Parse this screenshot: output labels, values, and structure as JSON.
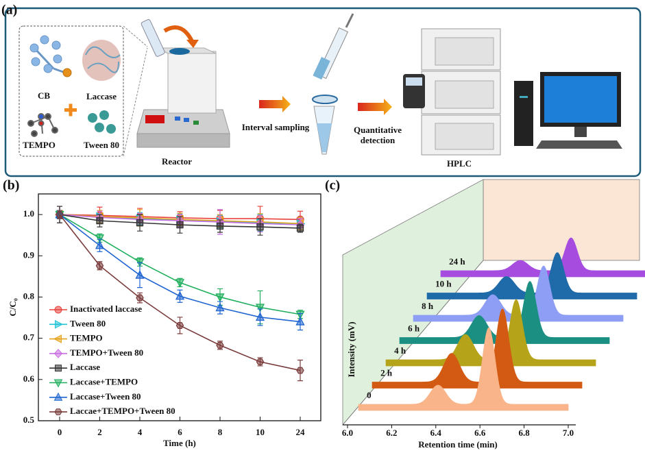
{
  "panel_a": {
    "label": "(a)",
    "cb": "CB",
    "laccase": "Laccase",
    "tempo": "TEMPO",
    "tween": "Tween 80",
    "reactor": "Reactor",
    "sampling": "Interval sampling",
    "detection": [
      "Quantitative",
      "detection"
    ],
    "hplc": "HPLC"
  },
  "chart_data": [
    {
      "panel_label": "(b)",
      "type": "line",
      "xlabel": "Time (h)",
      "ylabel": "C/C₀",
      "categories": [
        "0",
        "2",
        "4",
        "6",
        "8",
        "10",
        "24"
      ],
      "ylim": [
        0.5,
        1.05
      ],
      "yticks": [
        0.5,
        0.6,
        0.7,
        0.8,
        0.9,
        {
          "value": 1.0,
          "label": "1.0"
        }
      ],
      "legend": "lower left",
      "series": [
        {
          "name": "Inactivated laccase",
          "color": "#e8403a",
          "marker": "circle",
          "values": [
            1.0,
            0.998,
            0.995,
            0.992,
            0.99,
            0.99,
            0.988
          ],
          "errors": [
            0.02,
            0.02,
            0.02,
            0.015,
            0.02,
            0.03,
            0.02
          ]
        },
        {
          "name": "Tween 80",
          "color": "#1fc3d6",
          "marker": "tri-right",
          "values": [
            1.0,
            0.995,
            0.99,
            0.987,
            0.983,
            0.98,
            0.978
          ],
          "errors": [
            0.02,
            0.015,
            0.015,
            0.015,
            0.015,
            0.02,
            0.015
          ]
        },
        {
          "name": "TEMPO",
          "color": "#e3a21a",
          "marker": "tri-left",
          "values": [
            1.0,
            0.995,
            0.992,
            0.988,
            0.985,
            0.982,
            0.978
          ],
          "errors": [
            0.02,
            0.015,
            0.02,
            0.015,
            0.015,
            0.02,
            0.015
          ]
        },
        {
          "name": "TEMPO+Tween 80",
          "color": "#c86ee0",
          "marker": "diamond",
          "values": [
            1.0,
            0.993,
            0.988,
            0.985,
            0.982,
            0.978,
            0.975
          ],
          "errors": [
            0.02,
            0.015,
            0.015,
            0.015,
            0.03,
            0.02,
            0.015
          ]
        },
        {
          "name": "Laccase",
          "color": "#333333",
          "marker": "square",
          "values": [
            1.0,
            0.985,
            0.98,
            0.975,
            0.972,
            0.97,
            0.967
          ],
          "errors": [
            0.02,
            0.015,
            0.02,
            0.02,
            0.015,
            0.02,
            0.01
          ]
        },
        {
          "name": "Laccase+TEMPO",
          "color": "#1fae5c",
          "marker": "tri-down",
          "values": [
            1.0,
            0.943,
            0.885,
            0.835,
            0.8,
            0.775,
            0.758
          ],
          "errors": [
            0.01,
            0.01,
            0.01,
            0.01,
            0.02,
            0.04,
            0.01
          ]
        },
        {
          "name": "Laccase+Tween 80",
          "color": "#1f64d0",
          "marker": "tri-up",
          "values": [
            1.0,
            0.925,
            0.853,
            0.802,
            0.774,
            0.751,
            0.74
          ],
          "errors": [
            0.01,
            0.015,
            0.03,
            0.015,
            0.015,
            0.02,
            0.02
          ]
        },
        {
          "name": "Laccae+TEMPO+Tween 80",
          "color": "#7a3b3b",
          "marker": "hexagon",
          "values": [
            1.0,
            0.876,
            0.798,
            0.731,
            0.683,
            0.643,
            0.622
          ],
          "errors": [
            0.01,
            0.01,
            0.012,
            0.02,
            0.01,
            0.01,
            0.025
          ]
        }
      ]
    },
    {
      "panel_label": "(c)",
      "type": "waterfall",
      "xlabel": "Retention time (min)",
      "ylabel": "Intensity (mV)",
      "xlim": [
        6.0,
        7.0
      ],
      "xticks": [
        {
          "value": 6.0,
          "label": "6.0"
        },
        6.2,
        6.4,
        6.6,
        6.8,
        {
          "value": 7.0,
          "label": "7.0"
        }
      ],
      "x": [
        6.41,
        6.64
      ],
      "series": [
        {
          "name": "0",
          "color": "#f9b48a",
          "values": [
            28,
            112
          ]
        },
        {
          "name": "2 h",
          "color": "#d35a12",
          "values": [
            42,
            107
          ]
        },
        {
          "name": "4 h",
          "color": "#b5a41a",
          "values": [
            37,
            88
          ]
        },
        {
          "name": "6 h",
          "color": "#1a8f82",
          "values": [
            32,
            82
          ]
        },
        {
          "name": "8 h",
          "color": "#8f9ef5",
          "values": [
            30,
            72
          ]
        },
        {
          "name": "10 h",
          "color": "#1f6aa8",
          "values": [
            24,
            59
          ]
        },
        {
          "name": "24 h",
          "color": "#a64de0",
          "values": [
            15,
            48
          ]
        }
      ]
    }
  ]
}
